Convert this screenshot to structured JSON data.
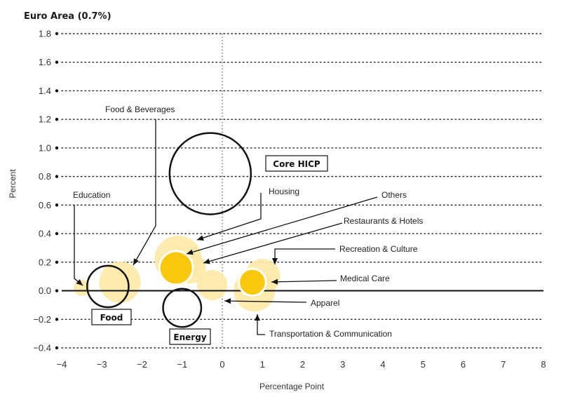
{
  "chart_data": {
    "type": "scatter",
    "title": "Euro Area (0.7%)",
    "xlabel": "Percentage Point",
    "ylabel": "Percent",
    "xlim": [
      -4,
      8
    ],
    "ylim": [
      -0.4,
      1.8
    ],
    "x_ticks": [
      -4,
      -3,
      -2,
      -1,
      0,
      1,
      2,
      3,
      4,
      5,
      6,
      7,
      8
    ],
    "x_tick_labels": [
      "−4",
      "−3",
      "−2",
      "−1",
      "0",
      "1",
      "2",
      "3",
      "4",
      "5",
      "6",
      "7",
      "8"
    ],
    "y_ticks": [
      -0.4,
      -0.2,
      0.0,
      0.2,
      0.4,
      0.6,
      0.8,
      1.0,
      1.2,
      1.4,
      1.6,
      1.8
    ],
    "y_tick_labels": [
      "−0.4",
      "−0.2",
      "0.0",
      "0.2",
      "0.4",
      "0.6",
      "0.8",
      "1.0",
      "1.2",
      "1.4",
      "1.6",
      "1.8"
    ],
    "grid": "horizontal dotted",
    "colors": {
      "light_bubble": "#fde9a6",
      "highlight_bubble": "#f9c80e",
      "outline": "#111111",
      "axis": "#111111"
    },
    "aggregates": [
      {
        "name": "Core HICP",
        "x": -0.3,
        "y": 0.82,
        "size": 1.0,
        "boxed_label": true
      },
      {
        "name": "Food",
        "x": -2.85,
        "y": 0.03,
        "size": 0.26,
        "boxed_label": true
      },
      {
        "name": "Energy",
        "x": -1.0,
        "y": -0.12,
        "size": 0.22,
        "boxed_label": true
      }
    ],
    "components": [
      {
        "name": "Education",
        "x": -3.5,
        "y": 0.02,
        "size": 0.04
      },
      {
        "name": "Food & Beverages",
        "x": -2.55,
        "y": 0.06,
        "size": 0.26
      },
      {
        "name": "Housing",
        "x": -1.1,
        "y": 0.22,
        "size": 0.34
      },
      {
        "name": "Others",
        "x": -1.15,
        "y": 0.16,
        "size": 0.17,
        "highlight": true
      },
      {
        "name": "Restaurants & Hotels",
        "x": -0.8,
        "y": 0.16,
        "size": 0.15
      },
      {
        "name": "Apparel",
        "x": -0.25,
        "y": 0.04,
        "size": 0.14
      },
      {
        "name": "Recreation & Culture",
        "x": 1.0,
        "y": 0.1,
        "size": 0.19
      },
      {
        "name": "Medical Care",
        "x": 0.75,
        "y": 0.06,
        "size": 0.11,
        "highlight": true
      },
      {
        "name": "Transportation & Communication",
        "x": 0.8,
        "y": 0.0,
        "size": 0.26
      }
    ]
  }
}
